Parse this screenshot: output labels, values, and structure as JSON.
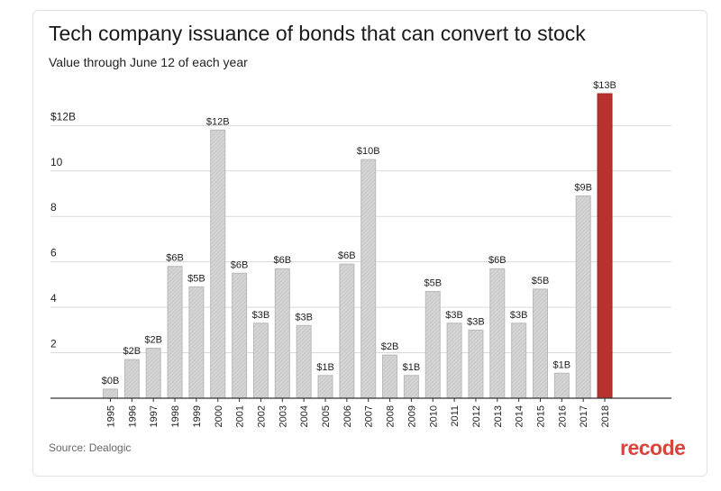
{
  "title": "Tech company issuance of bonds that can convert to stock",
  "subtitle": "Value through June 12 of each year",
  "source": "Source: Dealogic",
  "brand": "recode",
  "colors": {
    "bar": "#cfcfcf",
    "highlight": "#b8312c",
    "grid": "#d9d9d9",
    "brand": "#d7443a"
  },
  "chart_data": {
    "type": "bar",
    "categories": [
      "1995",
      "1996",
      "1997",
      "1998",
      "1999",
      "2000",
      "2001",
      "2002",
      "2003",
      "2004",
      "2005",
      "2006",
      "2007",
      "2008",
      "2009",
      "2010",
      "2011",
      "2012",
      "2013",
      "2014",
      "2015",
      "2016",
      "2017",
      "2018"
    ],
    "values": [
      0.4,
      1.7,
      2.2,
      5.8,
      4.9,
      11.8,
      5.5,
      3.3,
      5.7,
      3.2,
      1.0,
      5.9,
      10.5,
      1.9,
      1.0,
      4.7,
      3.3,
      3.0,
      5.7,
      3.3,
      4.8,
      1.1,
      8.9,
      13.4
    ],
    "data_labels": [
      "$0B",
      "$2B",
      "$2B",
      "$6B",
      "$5B",
      "$12B",
      "$6B",
      "$3B",
      "$6B",
      "$3B",
      "$1B",
      "$6B",
      "$10B",
      "$2B",
      "$1B",
      "$5B",
      "$3B",
      "$3B",
      "$6B",
      "$3B",
      "$5B",
      "$1B",
      "$9B",
      "$13B"
    ],
    "highlight": "2018",
    "ylim": [
      0,
      13.4
    ],
    "yticks": [
      2,
      4,
      6,
      8,
      10,
      12
    ],
    "ytick_labels": [
      "2",
      "4",
      "6",
      "8",
      "10",
      "$12B"
    ],
    "grid": true
  }
}
